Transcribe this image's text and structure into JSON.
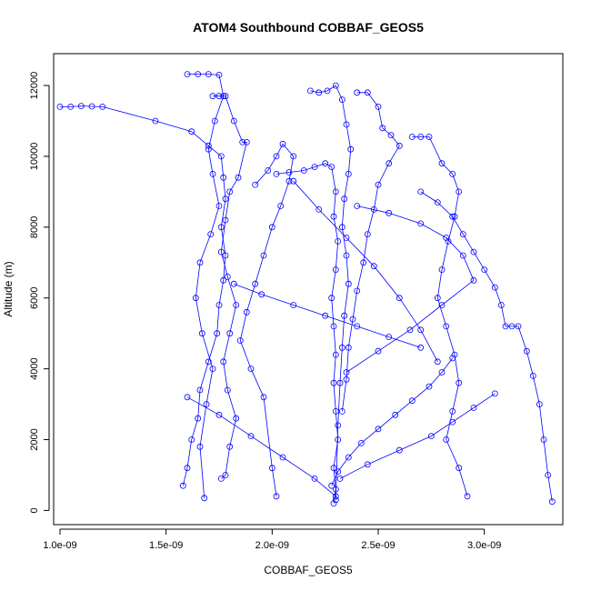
{
  "chart_data": {
    "type": "scatter",
    "title": "ATOM4 Southbound COBBAF_GEOS5",
    "xlabel": "COBBAF_GEOS5",
    "ylabel": "Altitude (m)",
    "xlim": [
      9.7e-10,
      3.37e-09
    ],
    "ylim": [
      -400,
      12900
    ],
    "x_ticks": [
      1e-09,
      1.5e-09,
      2e-09,
      2.5e-09,
      3e-09
    ],
    "x_tick_labels": [
      "1.0e-09",
      "1.5e-09",
      "2.0e-09",
      "2.5e-09",
      "3.0e-09"
    ],
    "y_ticks": [
      0,
      2000,
      4000,
      6000,
      8000,
      10000,
      12000
    ],
    "y_tick_labels": [
      "0",
      "2000",
      "4000",
      "6000",
      "8000",
      "10000",
      "12000"
    ],
    "series_color": "#0000ff",
    "series": [
      {
        "x": [
          1e-09,
          1.05e-09,
          1.1e-09,
          1.15e-09,
          1.2e-09,
          1.45e-09,
          1.62e-09,
          1.7e-09,
          1.76e-09,
          1.77e-09,
          1.78e-09,
          1.76e-09,
          1.78e-09,
          1.77e-09,
          1.75e-09,
          1.74e-09,
          1.7e-09,
          1.66e-09,
          1.65e-09,
          1.62e-09,
          1.6e-09,
          1.58e-09
        ],
        "y": [
          11400,
          11400,
          11420,
          11410,
          11400,
          11000,
          10700,
          10300,
          10000,
          9400,
          8800,
          8000,
          7200,
          6500,
          5800,
          5000,
          4200,
          3400,
          2600,
          2000,
          1200,
          700
        ]
      },
      {
        "x": [
          1.6e-09,
          1.65e-09,
          1.7e-09,
          1.75e-09,
          1.77e-09,
          1.73e-09,
          1.7e-09,
          1.72e-09,
          1.75e-09,
          1.71e-09,
          1.66e-09,
          1.64e-09,
          1.67e-09,
          1.72e-09,
          1.69e-09,
          1.66e-09,
          1.68e-09
        ],
        "y": [
          12320,
          12320,
          12320,
          12300,
          11700,
          11000,
          10200,
          9500,
          8600,
          7800,
          7000,
          6000,
          5000,
          4000,
          3000,
          1800,
          350
        ]
      },
      {
        "x": [
          1.72e-09,
          1.75e-09,
          1.78e-09,
          1.82e-09,
          1.86e-09,
          1.88e-09,
          1.84e-09,
          1.8e-09,
          1.78e-09,
          1.76e-09,
          1.79e-09,
          1.83e-09,
          1.8e-09,
          1.77e-09,
          1.79e-09,
          1.83e-09,
          1.8e-09,
          1.78e-09,
          1.76e-09
        ],
        "y": [
          11700,
          11700,
          11700,
          11000,
          10400,
          10400,
          9400,
          9000,
          8200,
          7300,
          6600,
          5800,
          5000,
          4200,
          3400,
          2600,
          1800,
          1000,
          900
        ]
      },
      {
        "x": [
          1.92e-09,
          1.98e-09,
          2.02e-09,
          2.05e-09,
          2.1e-09,
          2.08e-09,
          2.04e-09,
          2e-09,
          1.96e-09,
          1.92e-09,
          1.88e-09,
          1.85e-09,
          1.9e-09,
          1.96e-09,
          2e-09,
          2.02e-09
        ],
        "y": [
          9200,
          9600,
          10000,
          10350,
          10000,
          9300,
          8600,
          8000,
          7200,
          6400,
          5600,
          4800,
          4000,
          3200,
          1200,
          400
        ]
      },
      {
        "x": [
          2.02e-09,
          2.08e-09,
          2.15e-09,
          2.2e-09,
          2.25e-09,
          2.28e-09,
          2.3e-09,
          2.29e-09,
          2.31e-09,
          2.3e-09,
          2.28e-09,
          2.29e-09,
          2.3e-09,
          2.29e-09,
          2.3e-09,
          2.31e-09,
          2.29e-09,
          2.3e-09,
          2.29e-09
        ],
        "y": [
          9500,
          9550,
          9600,
          9700,
          9800,
          9700,
          9000,
          8300,
          7600,
          6800,
          6000,
          5200,
          4400,
          3600,
          2800,
          2000,
          1200,
          600,
          200
        ]
      },
      {
        "x": [
          2.18e-09,
          2.22e-09,
          2.26e-09,
          2.3e-09,
          2.33e-09,
          2.35e-09,
          2.37e-09,
          2.36e-09,
          2.34e-09,
          2.33e-09,
          2.35e-09,
          2.36e-09,
          2.34e-09,
          2.33e-09,
          2.32e-09,
          2.31e-09,
          2.3e-09
        ],
        "y": [
          11850,
          11800,
          11850,
          12000,
          11600,
          10900,
          10200,
          9500,
          8800,
          8000,
          7200,
          6400,
          5500,
          4600,
          3600,
          2400,
          300
        ]
      },
      {
        "x": [
          2.4e-09,
          2.45e-09,
          2.5e-09,
          2.52e-09,
          2.56e-09,
          2.6e-09,
          2.55e-09,
          2.5e-09,
          2.48e-09,
          2.45e-09,
          2.43e-09,
          2.4e-09,
          2.38e-09,
          2.36e-09,
          2.35e-09,
          2.33e-09
        ],
        "y": [
          11800,
          11800,
          11400,
          10800,
          10600,
          10300,
          9800,
          9200,
          8500,
          7800,
          7000,
          6200,
          5400,
          4600,
          3700,
          2800
        ]
      },
      {
        "x": [
          2.66e-09,
          2.7e-09,
          2.74e-09,
          2.8e-09,
          2.85e-09,
          2.88e-09,
          2.86e-09,
          2.83e-09,
          2.8e-09,
          2.78e-09,
          2.82e-09,
          2.86e-09,
          2.88e-09,
          2.85e-09,
          2.82e-09,
          2.88e-09,
          2.92e-09
        ],
        "y": [
          10550,
          10550,
          10550,
          9800,
          9500,
          9000,
          8300,
          7600,
          6800,
          6000,
          5200,
          4400,
          3600,
          2800,
          2000,
          1200,
          400
        ]
      },
      {
        "x": [
          2.7e-09,
          2.78e-09,
          2.85e-09,
          2.9e-09,
          2.95e-09,
          3e-09,
          3.05e-09,
          3.08e-09,
          3.1e-09,
          3.13e-09,
          3.16e-09,
          3.2e-09,
          3.23e-09,
          3.26e-09,
          3.28e-09,
          3.3e-09,
          3.32e-09
        ],
        "y": [
          9000,
          8700,
          8300,
          7800,
          7300,
          6800,
          6300,
          5800,
          5200,
          5200,
          5200,
          4500,
          3800,
          3000,
          2000,
          1000,
          250
        ]
      },
      {
        "x": [
          2.85e-09,
          2.8e-09,
          2.74e-09,
          2.66e-09,
          2.58e-09,
          2.5e-09,
          2.42e-09,
          2.36e-09,
          2.31e-09,
          2.28e-09
        ],
        "y": [
          4300,
          3900,
          3500,
          3100,
          2700,
          2300,
          1900,
          1500,
          1100,
          700
        ]
      },
      {
        "x": [
          1.6e-09,
          1.75e-09,
          1.9e-09,
          2.05e-09,
          2.2e-09,
          2.3e-09
        ],
        "y": [
          3200,
          2700,
          2100,
          1500,
          900,
          400
        ]
      },
      {
        "x": [
          2.32e-09,
          2.45e-09,
          2.6e-09,
          2.75e-09,
          2.85e-09,
          2.95e-09,
          3.05e-09
        ],
        "y": [
          900,
          1300,
          1700,
          2100,
          2500,
          2900,
          3300
        ]
      },
      {
        "x": [
          2.4e-09,
          2.55e-09,
          2.7e-09,
          2.82e-09,
          2.9e-09,
          2.95e-09,
          2.8e-09,
          2.65e-09,
          2.5e-09,
          2.35e-09
        ],
        "y": [
          8600,
          8400,
          8100,
          7700,
          7200,
          6500,
          5800,
          5100,
          4500,
          3900
        ]
      },
      {
        "x": [
          2.1e-09,
          2.22e-09,
          2.35e-09,
          2.48e-09,
          2.6e-09,
          2.7e-09,
          2.78e-09
        ],
        "y": [
          9300,
          8500,
          7700,
          6900,
          6000,
          5100,
          4200
        ]
      },
      {
        "x": [
          1.82e-09,
          1.95e-09,
          2.1e-09,
          2.25e-09,
          2.4e-09,
          2.55e-09,
          2.7e-09
        ],
        "y": [
          6400,
          6100,
          5800,
          5500,
          5200,
          4900,
          4600
        ]
      }
    ]
  }
}
